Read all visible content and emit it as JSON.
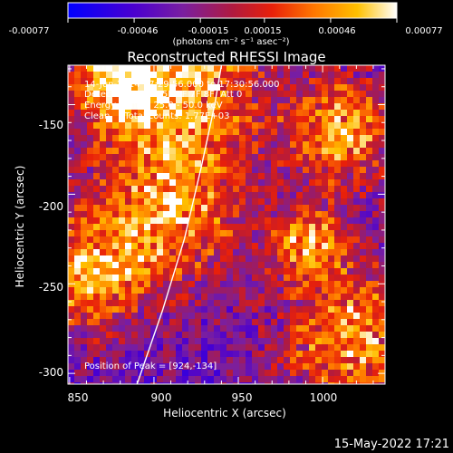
{
  "chart_data": {
    "type": "heatmap",
    "title": "Reconstructed RHESSI Image",
    "xlabel": "Heliocentric X (arcsec)",
    "ylabel": "Heliocentric Y (arcsec)",
    "xlim": [
      849,
      1037
    ],
    "ylim": [
      -306,
      -128
    ],
    "xticks": [
      850,
      900,
      950,
      1000
    ],
    "yticks": [
      -150,
      -200,
      -250,
      -300
    ],
    "colorbar": {
      "ticks": [
        "-0.00077",
        "-0.00046",
        "-0.00015",
        "0.00015",
        "0.00046",
        "0.00077"
      ],
      "range": [
        -0.00077,
        0.00077
      ],
      "unit_label": "(photons cm⁻² s⁻¹ asec⁻²)",
      "colors": [
        "#0000ff",
        "#5a00c8",
        "#7a1fa0",
        "#a01e5a",
        "#e01e14",
        "#ff6a00",
        "#ffb400",
        "#ffffff"
      ]
    },
    "limb_curve": [
      {
        "x": 890,
        "y": -306
      },
      {
        "x": 905,
        "y": -265
      },
      {
        "x": 918,
        "y": -225
      },
      {
        "x": 928,
        "y": -185
      },
      {
        "x": 936,
        "y": -150
      },
      {
        "x": 940,
        "y": -128
      }
    ],
    "annotations": [
      "14-Jun-2014 17:29:56.000 to 17:30:56.000",
      "Detectors: 3F 4F 5F 6F 7F 8F, Att 0",
      "Energy Range: 25.0 - 50.0 keV",
      "Clean     Total counts: 1.77E+03"
    ],
    "peak_label": "Position of Peak = [924,-134]",
    "peak": {
      "x": 924,
      "y": -134
    }
  },
  "timestamp": "15-May-2022 17:21"
}
